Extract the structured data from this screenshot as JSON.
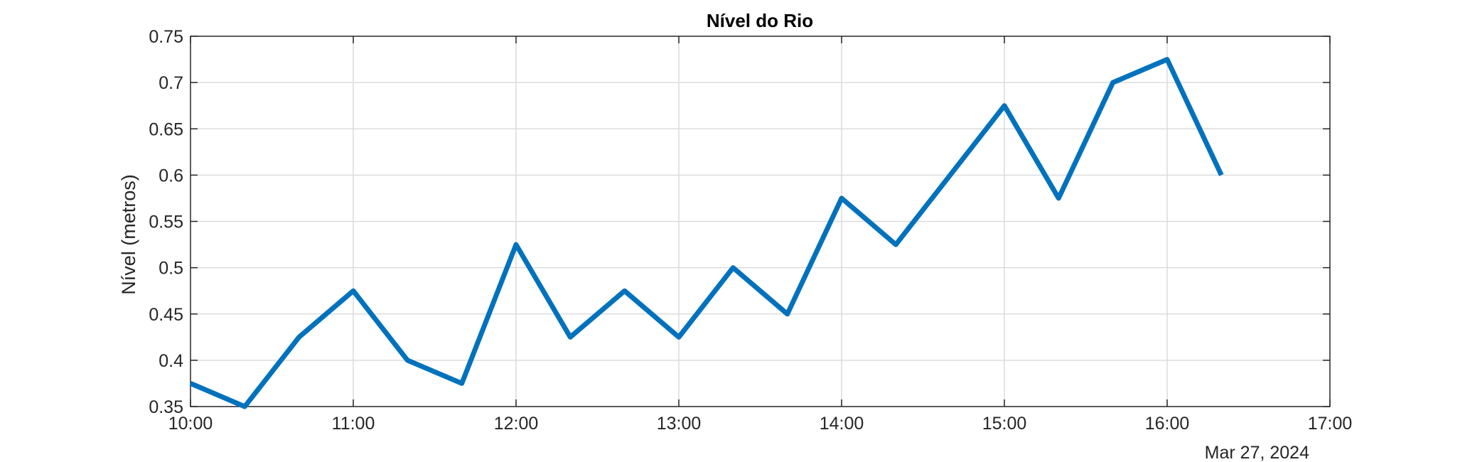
{
  "chart_data": {
    "type": "line",
    "title": "Nível do Rio",
    "xlabel": "",
    "ylabel": "Nível (metros)",
    "date_label": "Mar 27, 2024",
    "x": [
      "10:00",
      "10:20",
      "10:40",
      "11:00",
      "11:20",
      "11:40",
      "12:00",
      "12:20",
      "12:40",
      "13:00",
      "13:20",
      "13:40",
      "14:00",
      "14:20",
      "14:40",
      "15:00",
      "15:20",
      "15:40",
      "16:00",
      "16:20"
    ],
    "series": [
      {
        "values": [
          0.375,
          0.35,
          0.425,
          0.475,
          0.4,
          0.375,
          0.525,
          0.425,
          0.475,
          0.425,
          0.5,
          0.45,
          0.575,
          0.525,
          0.6,
          0.675,
          0.575,
          0.7,
          0.725,
          0.6
        ],
        "color": "#0072BD"
      }
    ],
    "xlim": [
      "10:00",
      "17:00"
    ],
    "ylim": [
      0.35,
      0.75
    ],
    "xticks": [
      "10:00",
      "11:00",
      "12:00",
      "13:00",
      "14:00",
      "15:00",
      "16:00",
      "17:00"
    ],
    "yticks": [
      "0.35",
      "0.4",
      "0.45",
      "0.5",
      "0.55",
      "0.6",
      "0.65",
      "0.7",
      "0.75"
    ],
    "grid": true,
    "box": true
  }
}
